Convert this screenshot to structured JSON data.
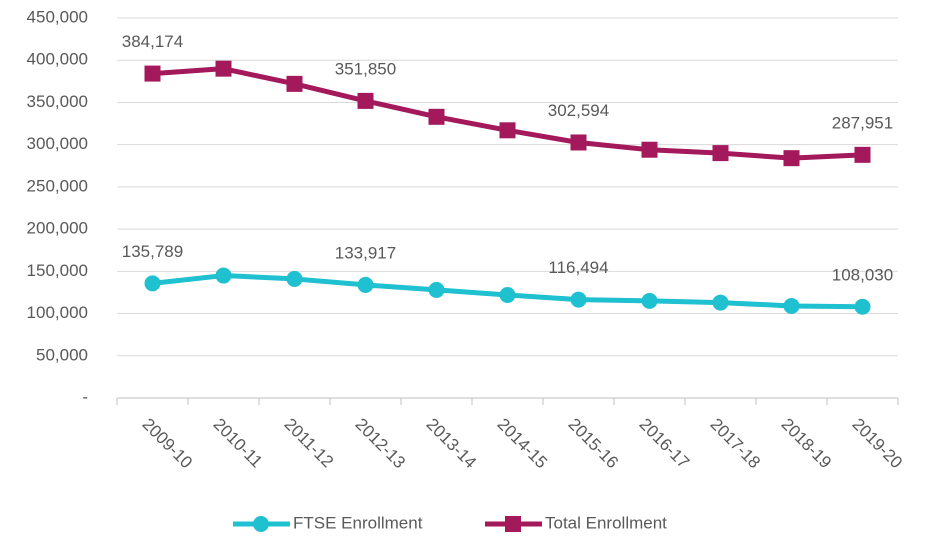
{
  "chart_data": {
    "type": "line",
    "categories": [
      "2009-10",
      "2010-11",
      "2011-12",
      "2012-13",
      "2013-14",
      "2014-15",
      "2015-16",
      "2016-17",
      "2017-18",
      "2018-19",
      "2019-20"
    ],
    "series": [
      {
        "name": "FTSE Enrollment",
        "color": "#1fc0d0",
        "marker": "circle",
        "values": [
          135789,
          145000,
          141000,
          133917,
          128000,
          122000,
          116494,
          115000,
          113000,
          109000,
          108030
        ],
        "value_labels": [
          "135,789",
          null,
          null,
          "133,917",
          null,
          null,
          "116,494",
          null,
          null,
          null,
          "108,030"
        ]
      },
      {
        "name": "Total Enrollment",
        "color": "#a3195b",
        "marker": "square",
        "values": [
          384174,
          390000,
          372000,
          351850,
          333000,
          317000,
          302594,
          294000,
          290000,
          284000,
          287951
        ],
        "value_labels": [
          "384,174",
          null,
          null,
          "351,850",
          null,
          null,
          "302,594",
          null,
          null,
          null,
          "287,951"
        ]
      }
    ],
    "ylim": [
      0,
      450000
    ],
    "yticks": [
      {
        "value": 0,
        "label": "-"
      },
      {
        "value": 50000,
        "label": "50,000"
      },
      {
        "value": 100000,
        "label": "100,000"
      },
      {
        "value": 150000,
        "label": "150,000"
      },
      {
        "value": 200000,
        "label": "200,000"
      },
      {
        "value": 250000,
        "label": "250,000"
      },
      {
        "value": 300000,
        "label": "300,000"
      },
      {
        "value": 350000,
        "label": "350,000"
      },
      {
        "value": 400000,
        "label": "400,000"
      },
      {
        "value": 450000,
        "label": "450,000"
      }
    ],
    "grid": true,
    "legend": "bottom"
  }
}
